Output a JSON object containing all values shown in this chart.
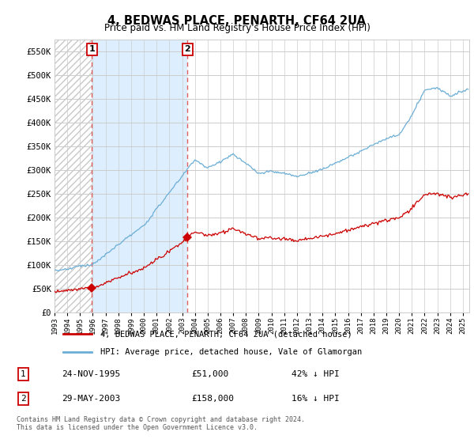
{
  "title": "4, BEDWAS PLACE, PENARTH, CF64 2UA",
  "subtitle": "Price paid vs. HM Land Registry's House Price Index (HPI)",
  "ylabel_ticks": [
    "£0",
    "£50K",
    "£100K",
    "£150K",
    "£200K",
    "£250K",
    "£300K",
    "£350K",
    "£400K",
    "£450K",
    "£500K",
    "£550K"
  ],
  "ytick_values": [
    0,
    50000,
    100000,
    150000,
    200000,
    250000,
    300000,
    350000,
    400000,
    450000,
    500000,
    550000
  ],
  "ylim": [
    0,
    575000
  ],
  "sale1": {
    "date_num": 1995.92,
    "price": 51000,
    "label": "1",
    "date_str": "24-NOV-1995",
    "pct": "42% ↓ HPI"
  },
  "sale2": {
    "date_num": 2003.41,
    "price": 158000,
    "label": "2",
    "date_str": "29-MAY-2003",
    "pct": "16% ↓ HPI"
  },
  "legend_label1": "4, BEDWAS PLACE, PENARTH, CF64 2UA (detached house)",
  "legend_label2": "HPI: Average price, detached house, Vale of Glamorgan",
  "footer1": "Contains HM Land Registry data © Crown copyright and database right 2024.",
  "footer2": "This data is licensed under the Open Government Licence v3.0.",
  "hpi_color": "#6baed6",
  "price_color": "#cc0000",
  "sale_marker_color": "#cc0000",
  "vline_color": "#e06060",
  "background_color": "#ffffff",
  "grid_color": "#cccccc",
  "hatch_color": "#c8c8c8",
  "between_fill_color": "#ddeeff",
  "xmin": 1993.0,
  "xmax": 2025.5
}
